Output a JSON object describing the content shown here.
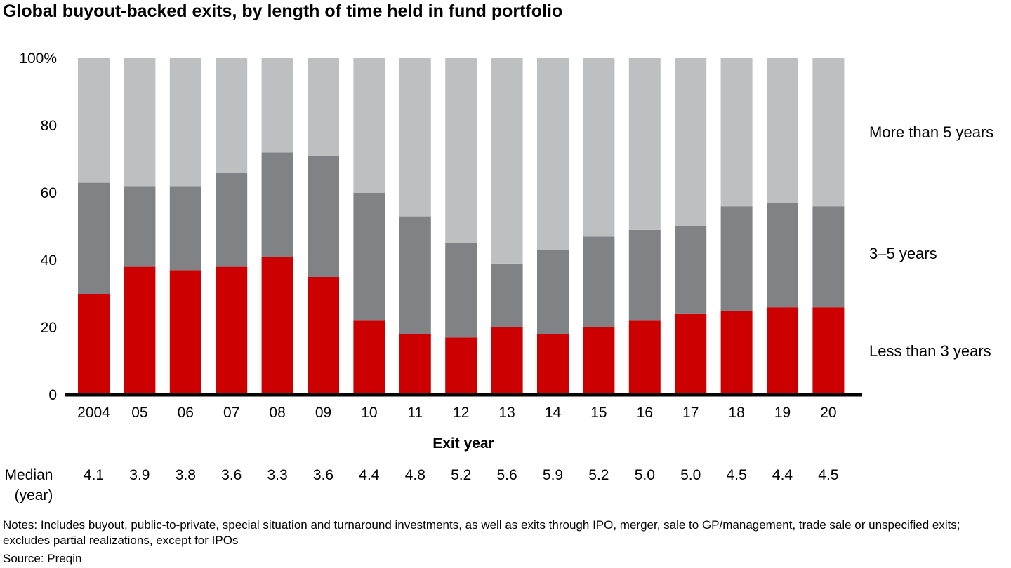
{
  "title": "Global buyout-backed exits, by length of time held in fund portfolio",
  "chart_data": {
    "type": "bar",
    "stacked": true,
    "title": "Global buyout-backed exits, by length of time held in fund portfolio",
    "xlabel": "Exit year",
    "ylabel": "",
    "ylim": [
      0,
      100
    ],
    "y_ticks": [
      "100%",
      "80",
      "60",
      "40",
      "20",
      "0"
    ],
    "y_tick_values": [
      100,
      80,
      60,
      40,
      20,
      0
    ],
    "categories": [
      "2004",
      "05",
      "06",
      "07",
      "08",
      "09",
      "10",
      "11",
      "12",
      "13",
      "14",
      "15",
      "16",
      "17",
      "18",
      "19",
      "20"
    ],
    "series": [
      {
        "name": "Less than 3 years",
        "color": "#cc0000",
        "values": [
          30,
          38,
          37,
          38,
          41,
          35,
          22,
          18,
          17,
          20,
          18,
          20,
          22,
          24,
          25,
          26,
          26
        ]
      },
      {
        "name": "3–5 years",
        "color": "#818286",
        "values": [
          33,
          24,
          25,
          28,
          31,
          36,
          38,
          35,
          28,
          19,
          25,
          27,
          27,
          26,
          31,
          31,
          30
        ]
      },
      {
        "name": "More than 5 years",
        "color": "#bebfc1",
        "values": [
          37,
          38,
          38,
          34,
          28,
          29,
          40,
          47,
          55,
          61,
          57,
          53,
          51,
          50,
          44,
          43,
          44
        ]
      }
    ],
    "legend_placement": "right, labels beside bands",
    "grid": false,
    "median_label": [
      "Median",
      "(year)"
    ],
    "median": [
      "4.1",
      "3.9",
      "3.8",
      "3.6",
      "3.3",
      "3.6",
      "4.4",
      "4.8",
      "5.2",
      "5.6",
      "5.9",
      "5.2",
      "5.0",
      "5.0",
      "4.5",
      "4.4",
      "4.5"
    ]
  },
  "notes": "Notes: Includes buyout, public-to-private, special situation and turnaround investments, as well as exits through IPO, merger, sale to GP/management, trade sale or unspecified exits; excludes partial realizations, except for IPOs",
  "source": "Source: Preqin"
}
